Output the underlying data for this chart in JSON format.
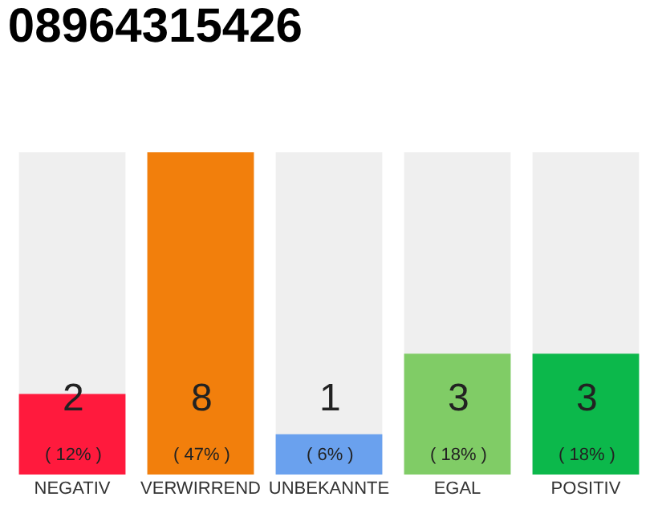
{
  "chart_data": {
    "type": "bar",
    "title": "08964315426",
    "categories": [
      "NEGATIV",
      "VERWIRREND",
      "UNBEKANNTE",
      "EGAL",
      "POSITIV"
    ],
    "values": [
      2,
      8,
      1,
      3,
      3
    ],
    "colors": [
      "#ff1a3d",
      "#f27f0c",
      "#6aa1ee",
      "#80cc66",
      "#0cb84b"
    ],
    "value_labels": [
      "2\n( 12% )",
      "8\n( 47% )",
      "1\n( 6% )",
      "3\n( 18% )",
      "3\n( 18% )"
    ],
    "ylim": [
      0,
      8
    ],
    "grid": false,
    "legend": false
  }
}
